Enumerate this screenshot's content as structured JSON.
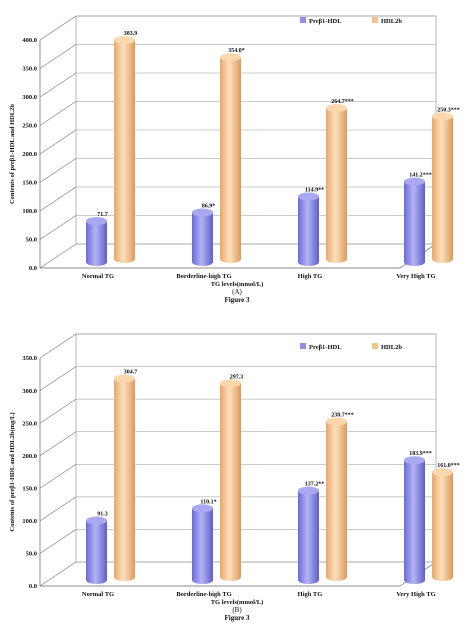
{
  "chart_data": [
    {
      "type": "bar",
      "title": "",
      "xlabel": "TG levels(mmol/L)",
      "ylabel": "Contents of preβ1-HDL and HDL2b",
      "subcaption": "(A)",
      "figure_label": "Figure 3",
      "ylim": [
        0,
        400
      ],
      "yticks": [
        "0.0",
        "50.0",
        "100.0",
        "150.0",
        "200.0",
        "250.0",
        "300.0",
        "350.0",
        "400.0"
      ],
      "categories": [
        "Normal TG",
        "Borderline-high TG",
        "High TG",
        "Very High TG"
      ],
      "legend_position": "top-right",
      "series": [
        {
          "name": "Preβ1-HDL",
          "color": "#8f8fe6",
          "values": [
            71.7,
            86.9,
            114.9,
            141.2
          ],
          "labels": [
            "71.7",
            "86.9*",
            "114.9**",
            "141.2***"
          ]
        },
        {
          "name": "HDL2b",
          "color": "#f5c28a",
          "values": [
            383.9,
            354.0,
            264.7,
            250.3
          ],
          "labels": [
            "383.9",
            "354.0*",
            "264.7***",
            "250.3***"
          ]
        }
      ]
    },
    {
      "type": "bar",
      "title": "",
      "xlabel": "TG levels(mmol/L)",
      "ylabel": "Contents of preβ1-HDL and HDL2b(mg/L)",
      "subcaption": "(B)",
      "figure_label": "Figure 3",
      "ylim": [
        0,
        350
      ],
      "yticks": [
        "0.0",
        "50.0",
        "100.0",
        "150.0",
        "200.0",
        "250.0",
        "300.0",
        "350.0"
      ],
      "categories": [
        "Normal TG",
        "Borderline-high TG",
        "High TG",
        "Very High TG"
      ],
      "legend_position": "top-right",
      "series": [
        {
          "name": "Preβ1-HDL",
          "color": "#8f8fe6",
          "values": [
            91.3,
            110.1,
            137.2,
            183.9
          ],
          "labels": [
            "91.3",
            "110.1*",
            "137.2**",
            "183.9***"
          ]
        },
        {
          "name": "HDL2b",
          "color": "#f5c28a",
          "values": [
            304.7,
            297.3,
            238.7,
            161.0
          ],
          "labels": [
            "304.7",
            "297.3",
            "238.7***",
            "161.0***"
          ]
        }
      ]
    }
  ]
}
